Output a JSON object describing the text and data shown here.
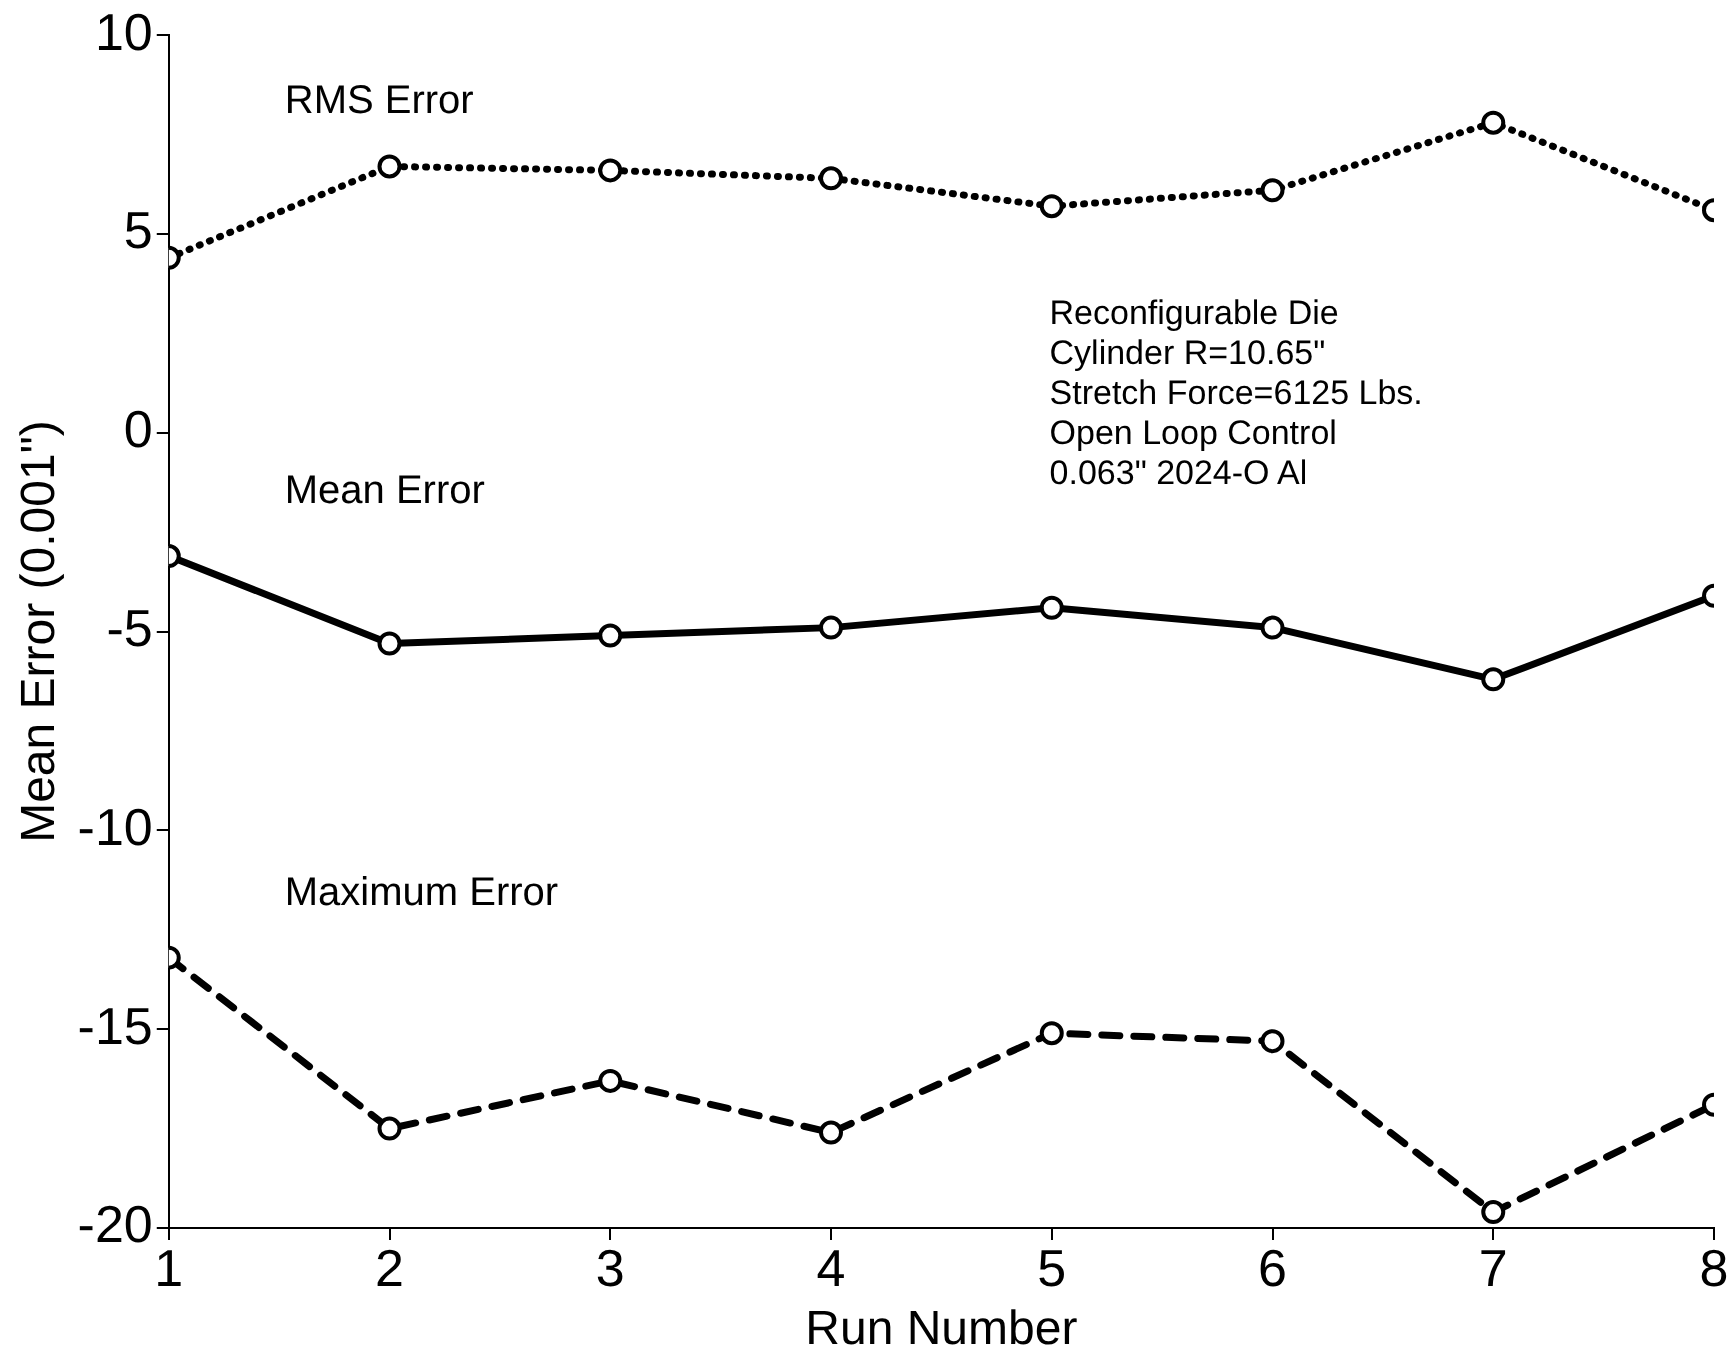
{
  "chart_data": {
    "type": "line",
    "xlabel": "Run Number",
    "ylabel": "Mean Error (0.001\")",
    "x": [
      1,
      2,
      3,
      4,
      5,
      6,
      7,
      8
    ],
    "xlim": [
      1,
      8
    ],
    "xticks": [
      1,
      2,
      3,
      4,
      5,
      6,
      7,
      8
    ],
    "ylim": [
      -20,
      10
    ],
    "yticks": [
      -20,
      -15,
      -10,
      -5,
      0,
      5,
      10
    ],
    "grid": false,
    "legend": false,
    "marker": "circle",
    "series": [
      {
        "name": "RMS Error",
        "color": "#000000",
        "line_style": "dotted",
        "values": [
          4.4,
          6.7,
          6.6,
          6.4,
          5.7,
          6.1,
          7.8,
          5.6
        ]
      },
      {
        "name": "Mean Error",
        "color": "#000000",
        "line_style": "solid",
        "values": [
          -3.1,
          -5.3,
          -5.1,
          -4.9,
          -4.4,
          -4.9,
          -6.2,
          -4.1
        ]
      },
      {
        "name": "Maximum Error",
        "color": "#000000",
        "line_style": "dashed",
        "values": [
          -13.2,
          -17.5,
          -16.3,
          -17.6,
          -15.1,
          -15.3,
          -19.6,
          -16.9
        ]
      }
    ],
    "annotations": [
      "Reconfigurable Die\nCylinder R=10.65\"\nStretch Force=6125 Lbs.\nOpen Loop Control\n0.063\" 2024-O Al"
    ]
  }
}
